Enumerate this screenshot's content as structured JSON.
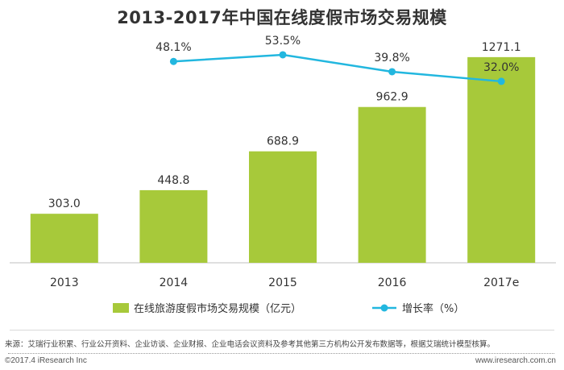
{
  "chart_data": {
    "type": "bar",
    "title": "2013-2017年中国在线度假市场交易规模",
    "categories": [
      "2013",
      "2014",
      "2015",
      "2016",
      "2017e"
    ],
    "series": [
      {
        "name": "在线旅游度假市场交易规模（亿元）",
        "kind": "bar",
        "values": [
          303.0,
          448.8,
          688.9,
          962.9,
          1271.1
        ],
        "labels": [
          "303.0",
          "448.8",
          "688.9",
          "962.9",
          "1271.1"
        ],
        "color": "#a7c93a"
      },
      {
        "name": "增长率（%）",
        "kind": "line",
        "x": [
          "2014",
          "2015",
          "2016",
          "2017e"
        ],
        "values": [
          48.1,
          53.5,
          39.8,
          32.0
        ],
        "labels": [
          "48.1%",
          "53.5%",
          "39.8%",
          "32.0%"
        ],
        "color": "#22b7df"
      }
    ],
    "ylim": [
      0,
      1400
    ],
    "rate_ylim": [
      0,
      60
    ],
    "legend_position": "bottom",
    "grid": false
  },
  "footer": {
    "source": "来源：艾瑞行业积累、行业公开资料、企业访谈、企业财报、企业电话会议资料及参考其他第三方机构公开发布数据等，根据艾瑞统计模型核算。",
    "copyright": "©2017.4 iResearch Inc",
    "site": "www.iresearch.com.cn"
  }
}
